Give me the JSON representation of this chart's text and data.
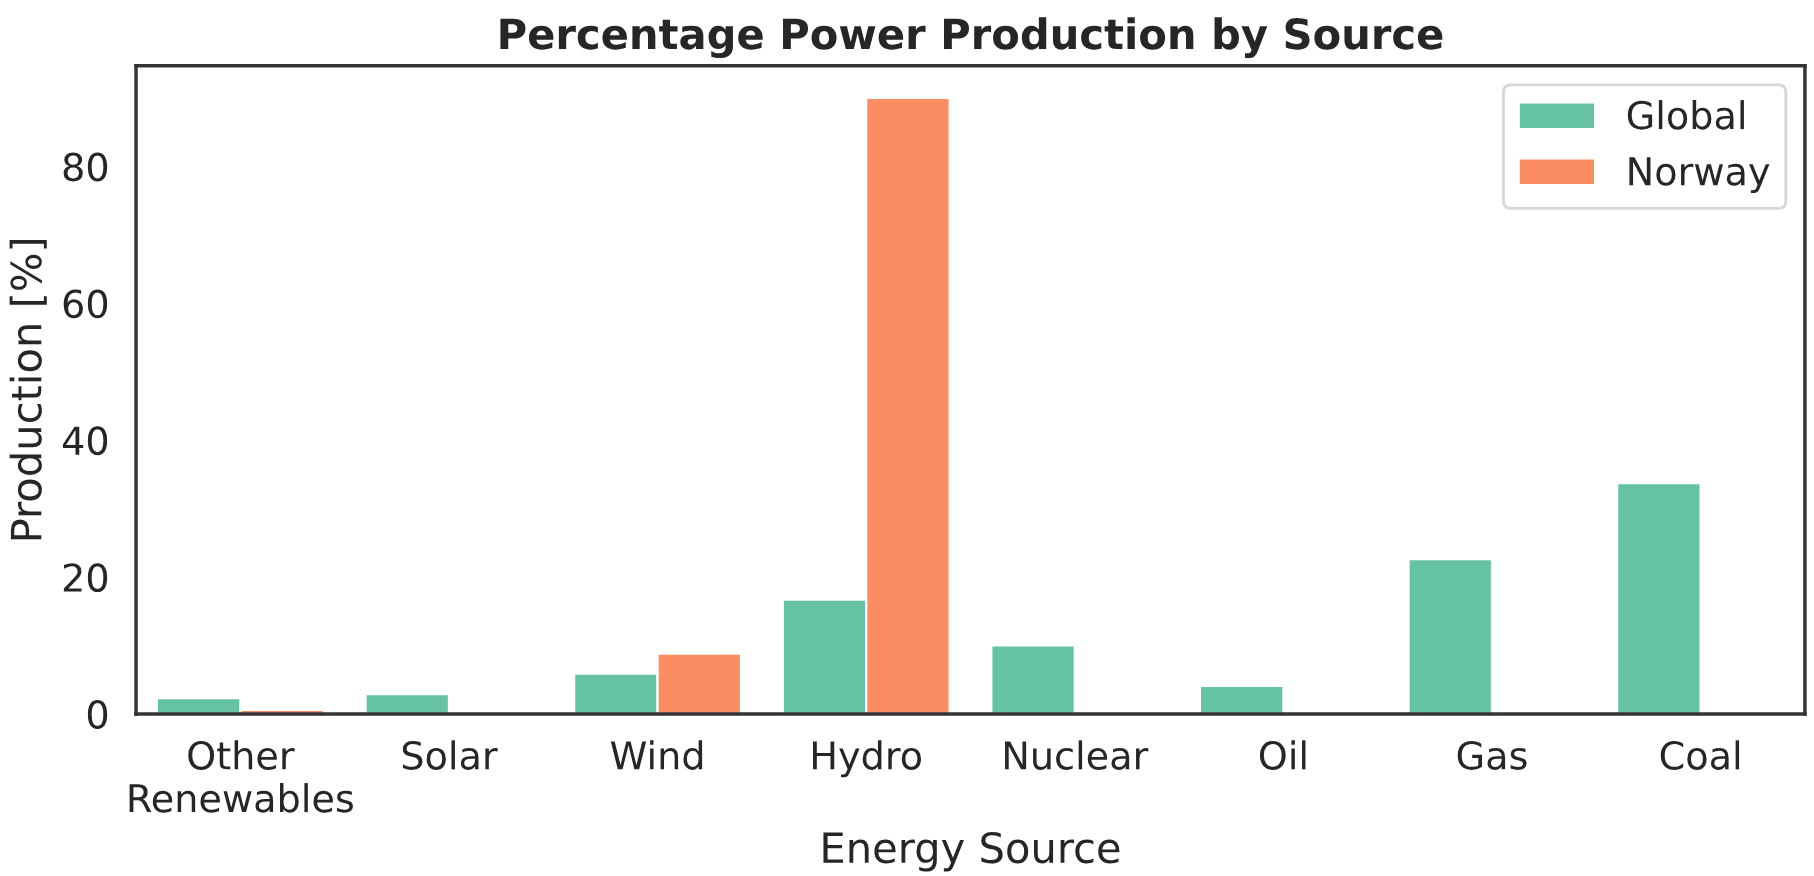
{
  "chart_data": {
    "type": "bar",
    "title": "Percentage Power Production by Source",
    "xlabel": "Energy Source",
    "ylabel": "Production [%]",
    "categories": [
      "Other\nRenewables",
      "Solar",
      "Wind",
      "Hydro",
      "Nuclear",
      "Oil",
      "Gas",
      "Coal"
    ],
    "series": [
      {
        "name": "Global",
        "color": "#66c2a5",
        "values": [
          2.3,
          2.9,
          5.9,
          16.7,
          10.0,
          4.1,
          22.6,
          33.7
        ]
      },
      {
        "name": "Norway",
        "color": "#fc8d62",
        "values": [
          0.6,
          null,
          8.8,
          90.0,
          null,
          null,
          null,
          null
        ]
      }
    ],
    "ylim": [
      0,
      94.7
    ],
    "yticks": [
      0,
      20,
      40,
      60,
      80
    ],
    "grid": false,
    "legend": "top right"
  }
}
